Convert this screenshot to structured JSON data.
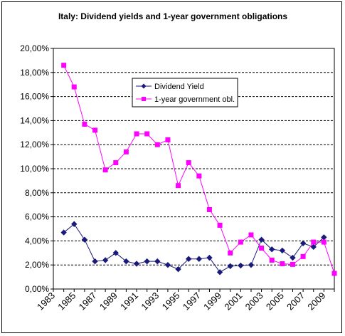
{
  "chart_data": {
    "type": "line",
    "title": "Italy: Dividend yields and 1-year government obligations",
    "xlabel": "",
    "ylabel": "",
    "ylim": [
      0,
      20
    ],
    "y_ticks": [
      "0,00%",
      "2,00%",
      "4,00%",
      "6,00%",
      "8,00%",
      "10,00%",
      "12,00%",
      "14,00%",
      "16,00%",
      "18,00%",
      "20,00%"
    ],
    "x_tick_labels": [
      "1983",
      "1985",
      "1987",
      "1989",
      "1991",
      "1993",
      "1995",
      "1997",
      "1999",
      "2001",
      "2003",
      "2005",
      "2007",
      "2009"
    ],
    "x": [
      1984,
      1985,
      1986,
      1987,
      1988,
      1989,
      1990,
      1991,
      1992,
      1993,
      1994,
      1995,
      1996,
      1997,
      1998,
      1999,
      2000,
      2001,
      2002,
      2003,
      2004,
      2005,
      2006,
      2007,
      2008,
      2009,
      2010
    ],
    "grid": "horizontal dashed",
    "legend_position": "center-top inside plot",
    "series": [
      {
        "name": "Dividend Yield",
        "color": "#1a1a7a",
        "marker": "diamond",
        "values": [
          4.7,
          5.4,
          4.1,
          2.3,
          2.4,
          3.0,
          2.3,
          2.1,
          2.3,
          2.3,
          2.0,
          1.65,
          2.5,
          2.5,
          2.6,
          1.4,
          1.9,
          1.95,
          2.0,
          4.1,
          3.3,
          3.2,
          2.6,
          3.8,
          3.5,
          4.3,
          null
        ]
      },
      {
        "name": "1-year government obl.",
        "color": "#ff00ff",
        "marker": "square",
        "values": [
          18.6,
          16.8,
          13.7,
          13.2,
          9.9,
          10.5,
          11.4,
          12.9,
          12.9,
          12.0,
          12.4,
          8.6,
          10.5,
          9.4,
          6.6,
          5.3,
          3.0,
          3.9,
          4.5,
          3.4,
          2.4,
          2.1,
          2.05,
          2.7,
          3.9,
          3.9,
          1.3
        ]
      }
    ]
  }
}
